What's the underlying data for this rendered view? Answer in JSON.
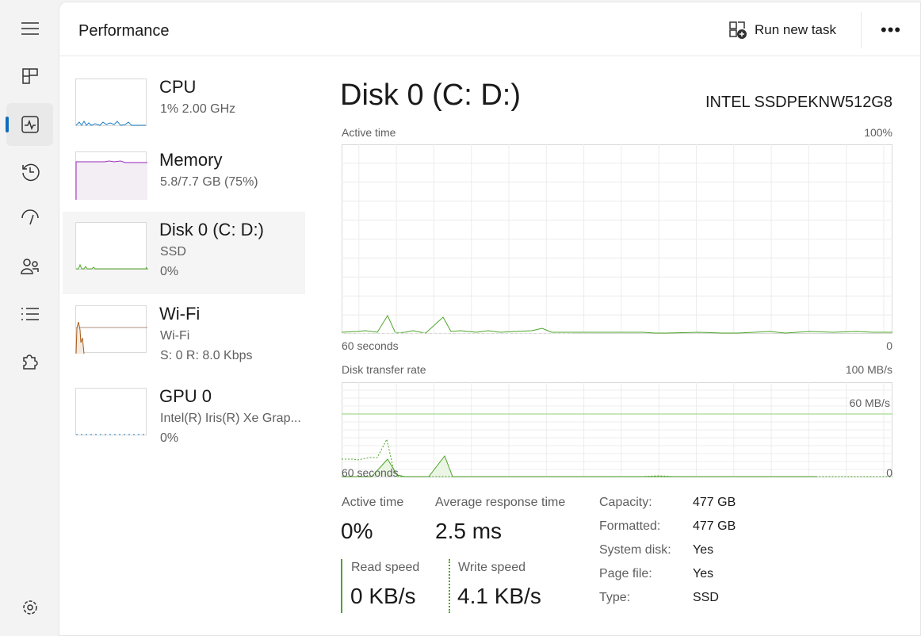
{
  "header": {
    "title": "Performance",
    "run_new_task": "Run new task",
    "more": "•••"
  },
  "nav": [
    "hamburger-icon",
    "processes-icon",
    "performance-icon",
    "app-history-icon",
    "startup-apps-icon",
    "users-icon",
    "details-icon",
    "services-icon",
    "settings-icon"
  ],
  "devices": [
    {
      "name": "CPU",
      "line1": "1%  2.00 GHz",
      "line2": "",
      "color": "#1b7fc4"
    },
    {
      "name": "Memory",
      "line1": "5.8/7.7 GB (75%)",
      "line2": "",
      "color": "#9a2bbd"
    },
    {
      "name": "Disk 0 (C: D:)",
      "line1": "SSD",
      "line2": "0%",
      "color": "#4da428",
      "selected": true
    },
    {
      "name": "Wi-Fi",
      "line1": "Wi-Fi",
      "line2": "S: 0  R: 8.0 Kbps",
      "color": "#a75a1a"
    },
    {
      "name": "GPU 0",
      "line1": "Intel(R) Iris(R) Xe Grap...",
      "line2": "0%",
      "color": "#1b7fc4"
    }
  ],
  "detail": {
    "title": "Disk 0 (C: D:)",
    "model": "INTEL SSDPEKNW512G8",
    "chart1": {
      "label": "Active time",
      "max": "100%",
      "xleft": "60 seconds",
      "xright": "0"
    },
    "chart2": {
      "label": "Disk transfer rate",
      "max": "100 MB/s",
      "mid": "60 MB/s",
      "xleft": "60 seconds",
      "xright": "0"
    },
    "stats": {
      "active_label": "Active time",
      "active": "0%",
      "resp_label": "Average response time",
      "resp": "2.5 ms",
      "read_label": "Read speed",
      "read": "0 KB/s",
      "write_label": "Write speed",
      "write": "4.1 KB/s"
    },
    "props": [
      [
        "Capacity:",
        "477 GB"
      ],
      [
        "Formatted:",
        "477 GB"
      ],
      [
        "System disk:",
        "Yes"
      ],
      [
        "Page file:",
        "Yes"
      ],
      [
        "Type:",
        "SSD"
      ]
    ],
    "accent": "#4da428"
  }
}
